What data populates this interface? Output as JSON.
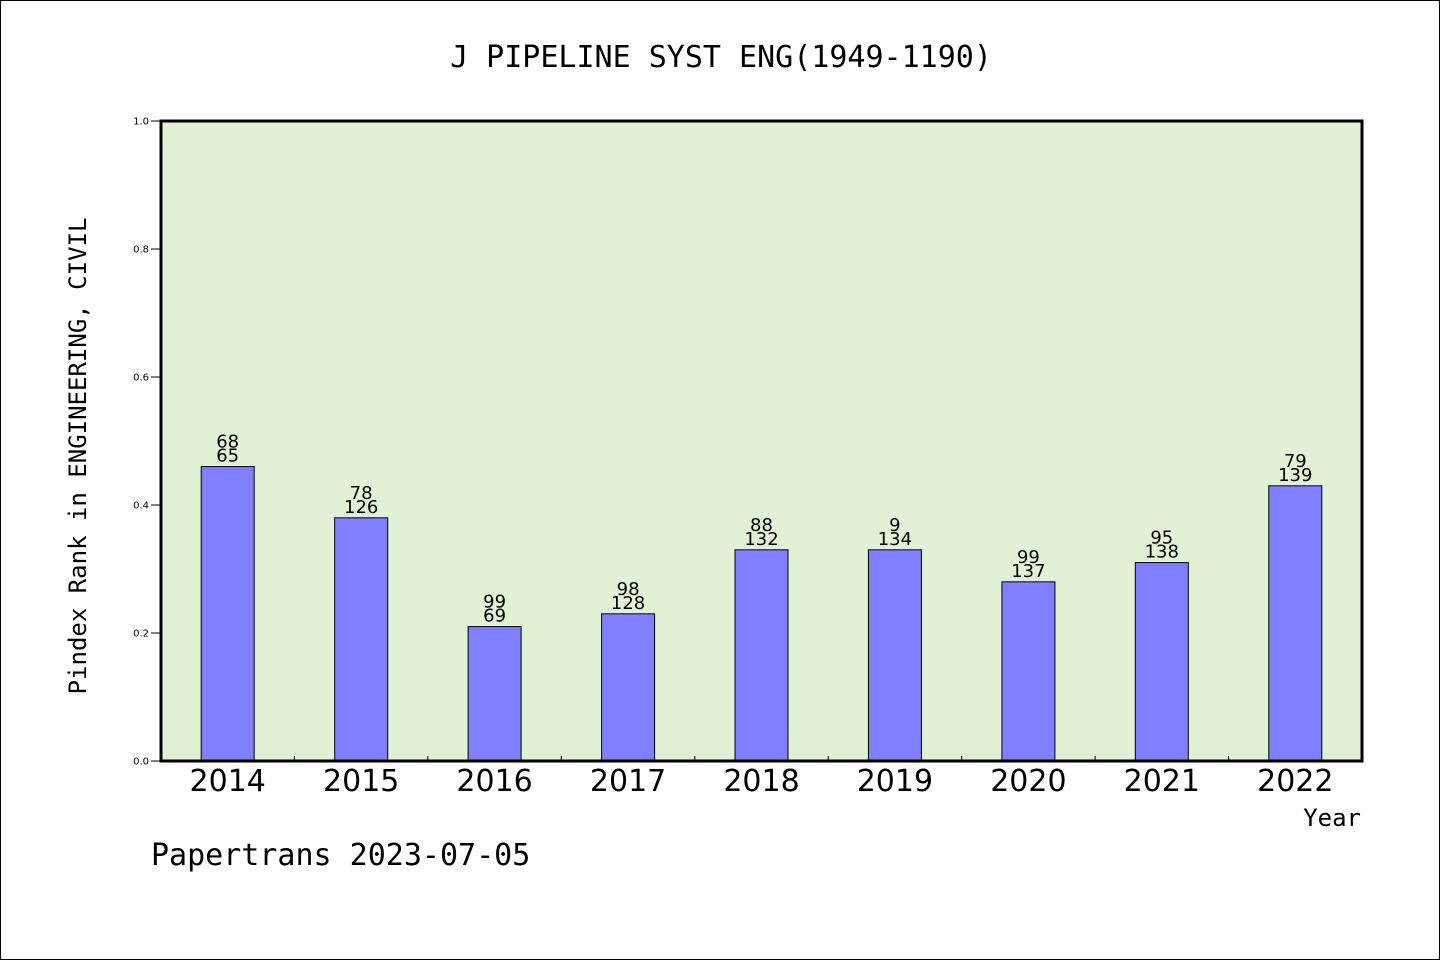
{
  "chart_data": {
    "type": "bar",
    "title": "J PIPELINE SYST ENG(1949-1190)",
    "xlabel": "Year",
    "ylabel": "Pindex Rank in ENGINEERING, CIVIL",
    "ylim": [
      0,
      1.0
    ],
    "yticks": [
      "0.0",
      "0.2",
      "0.4",
      "0.6",
      "0.8",
      "1.0"
    ],
    "categories": [
      "2014",
      "2015",
      "2016",
      "2017",
      "2018",
      "2019",
      "2020",
      "2021",
      "2022"
    ],
    "values": [
      0.46,
      0.38,
      0.21,
      0.23,
      0.33,
      0.33,
      0.28,
      0.31,
      0.43
    ],
    "labels_top": [
      "68",
      "78",
      "99",
      "98",
      "88",
      "9",
      "99",
      "95",
      "79"
    ],
    "labels_bottom": [
      "65",
      "126",
      "69",
      "128",
      "132",
      "134",
      "137",
      "138",
      "139"
    ],
    "colors": {
      "bar": "#8080ff",
      "plot_background": "#e2f0d6",
      "axis": "#000000"
    },
    "grid": false,
    "legend": "none"
  },
  "footer": "Papertrans 2023-07-05"
}
